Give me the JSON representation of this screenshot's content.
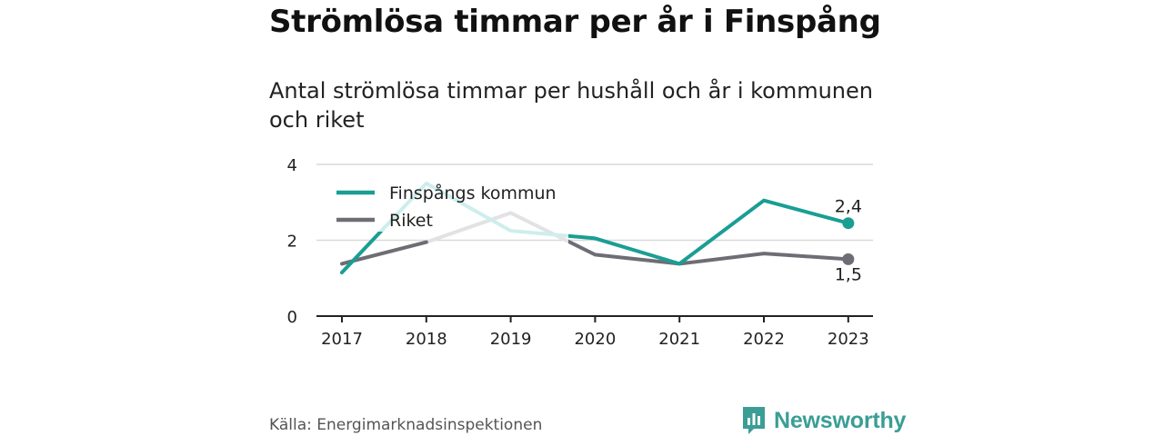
{
  "header": {
    "title": "Strömlösa timmar per år i Finspång",
    "subtitle": "Antal strömlösa timmar per hushåll och år i kommunen och riket"
  },
  "footer": {
    "source": "Källa: Energimarknadsinspektionen",
    "brand": "Newsworthy",
    "brand_icon": "newsworthy-logo-icon"
  },
  "colors": {
    "finspang": "#1a9e94",
    "riket": "#6e6d75",
    "finspang_faded": "#cdeeec",
    "riket_faded": "#e2e2e4",
    "grid": "#d9d9d9",
    "axis": "#222222",
    "brand": "#3a9e96"
  },
  "chart_data": {
    "type": "line",
    "categories": [
      "2017",
      "2018",
      "2019",
      "2020",
      "2021",
      "2022",
      "2023"
    ],
    "series": [
      {
        "name": "Finspångs kommun",
        "values": [
          1.15,
          3.5,
          2.25,
          2.05,
          1.38,
          3.05,
          2.45
        ]
      },
      {
        "name": "Riket",
        "values": [
          1.38,
          1.95,
          2.72,
          1.62,
          1.38,
          1.65,
          1.5
        ]
      }
    ],
    "yticks": [
      0,
      2,
      4
    ],
    "ylim": [
      0,
      4
    ],
    "grid": true,
    "legend_position": "top-left",
    "end_labels": [
      "2,4",
      "1,5"
    ],
    "xlabel": "",
    "ylabel": ""
  }
}
